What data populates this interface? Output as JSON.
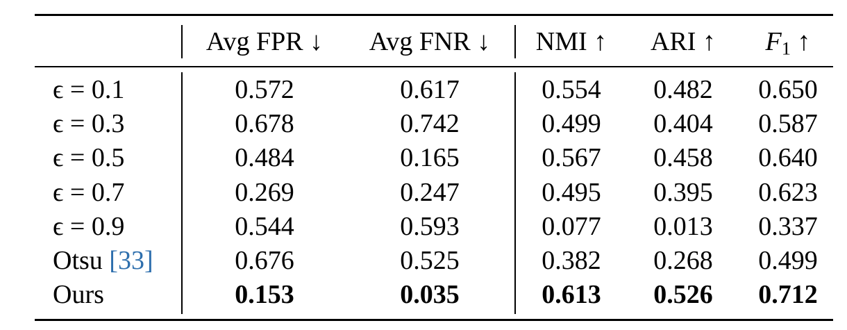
{
  "table": {
    "header": {
      "col1": "Avg FPR ↓",
      "col2": "Avg FNR ↓",
      "col3": "NMI ↑",
      "col4": "ARI ↑",
      "col5_var": "F",
      "col5_sub": "1",
      "col5_arrow": "↑"
    },
    "rows": [
      {
        "label": "ϵ = 0.1",
        "values": [
          "0.572",
          "0.617",
          "0.554",
          "0.482",
          "0.650"
        ]
      },
      {
        "label": "ϵ = 0.3",
        "values": [
          "0.678",
          "0.742",
          "0.499",
          "0.404",
          "0.587"
        ]
      },
      {
        "label": "ϵ = 0.5",
        "values": [
          "0.484",
          "0.165",
          "0.567",
          "0.458",
          "0.640"
        ]
      },
      {
        "label": "ϵ = 0.7",
        "values": [
          "0.269",
          "0.247",
          "0.495",
          "0.395",
          "0.623"
        ]
      },
      {
        "label": "ϵ = 0.9",
        "values": [
          "0.544",
          "0.593",
          "0.077",
          "0.013",
          "0.337"
        ]
      },
      {
        "label": "Otsu",
        "cite": "[33]",
        "values": [
          "0.676",
          "0.525",
          "0.382",
          "0.268",
          "0.499"
        ]
      },
      {
        "label": "Ours",
        "values": [
          "0.153",
          "0.035",
          "0.613",
          "0.526",
          "0.712"
        ],
        "bold": true
      }
    ]
  }
}
